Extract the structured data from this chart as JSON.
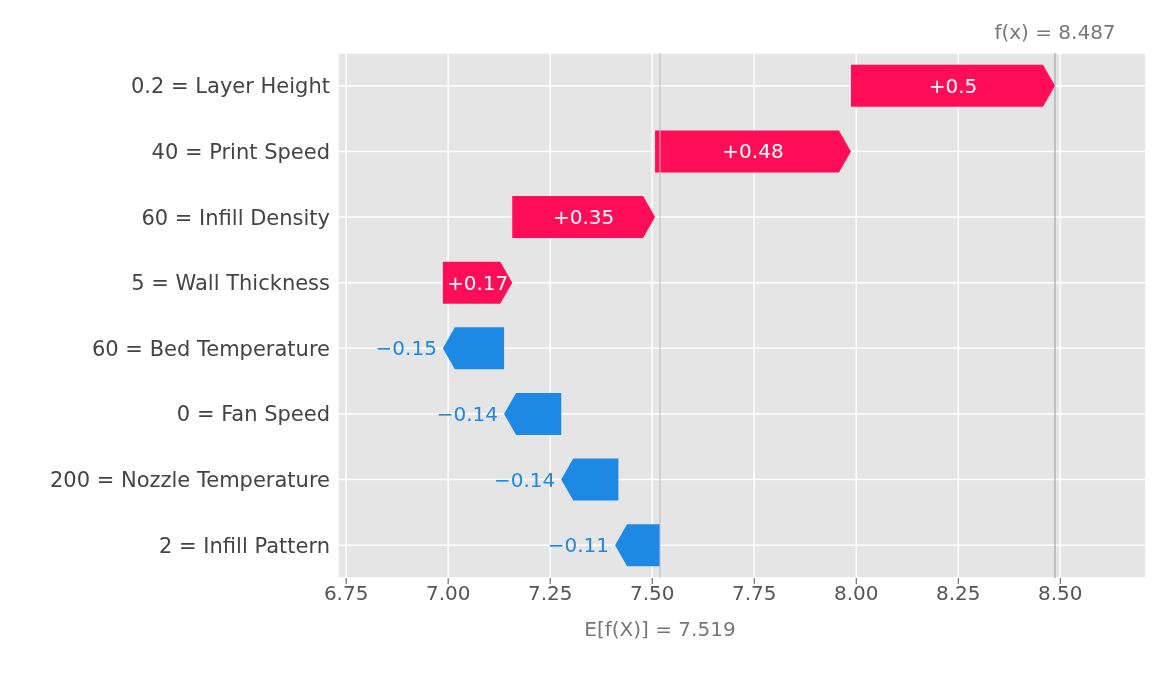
{
  "chart_data": {
    "type": "bar",
    "orientation": "horizontal",
    "categories": [
      "0.2 = Layer Height",
      "40 = Print Speed",
      "60 = Infill Density",
      "5 = Wall Thickness",
      "60 = Bed Temperature",
      "0 = Fan Speed",
      "200 = Nozzle Temperature",
      "2 = Infill Pattern"
    ],
    "values": [
      0.5,
      0.48,
      0.35,
      0.17,
      -0.15,
      -0.14,
      -0.14,
      -0.11
    ],
    "base": [
      7.987,
      7.507,
      7.157,
      6.987,
      7.137,
      7.277,
      7.417,
      7.519
    ],
    "colors": [
      "#ff0d57",
      "#ff0d57",
      "#ff0d57",
      "#ff0d57",
      "#1e88e5",
      "#1e88e5",
      "#1e88e5",
      "#1e88e5"
    ],
    "value_labels": [
      "+0.5",
      "+0.48",
      "+0.35",
      "+0.17",
      "−0.15",
      "−0.14",
      "−0.14",
      "−0.11"
    ],
    "xlim": [
      6.73,
      8.71
    ],
    "xticks": [
      {
        "value": 6.75,
        "label": "6.75"
      },
      {
        "value": 7,
        "label": "7.00"
      },
      {
        "value": 7.25,
        "label": "7.25"
      },
      {
        "value": 7.5,
        "label": "7.50"
      },
      {
        "value": 7.75,
        "label": "7.75"
      },
      {
        "value": 8,
        "label": "8.00"
      },
      {
        "value": 8.25,
        "label": "8.25"
      },
      {
        "value": 8.5,
        "label": "8.50"
      }
    ],
    "ref_lines": [
      {
        "axis": "x",
        "value": 8.487,
        "label": "f(x) = 8.487",
        "color": "#999999"
      },
      {
        "axis": "x",
        "value": 7.519,
        "label": "E[f(X)] = 7.519",
        "color": "#bbbbbb"
      }
    ],
    "grid": true
  }
}
